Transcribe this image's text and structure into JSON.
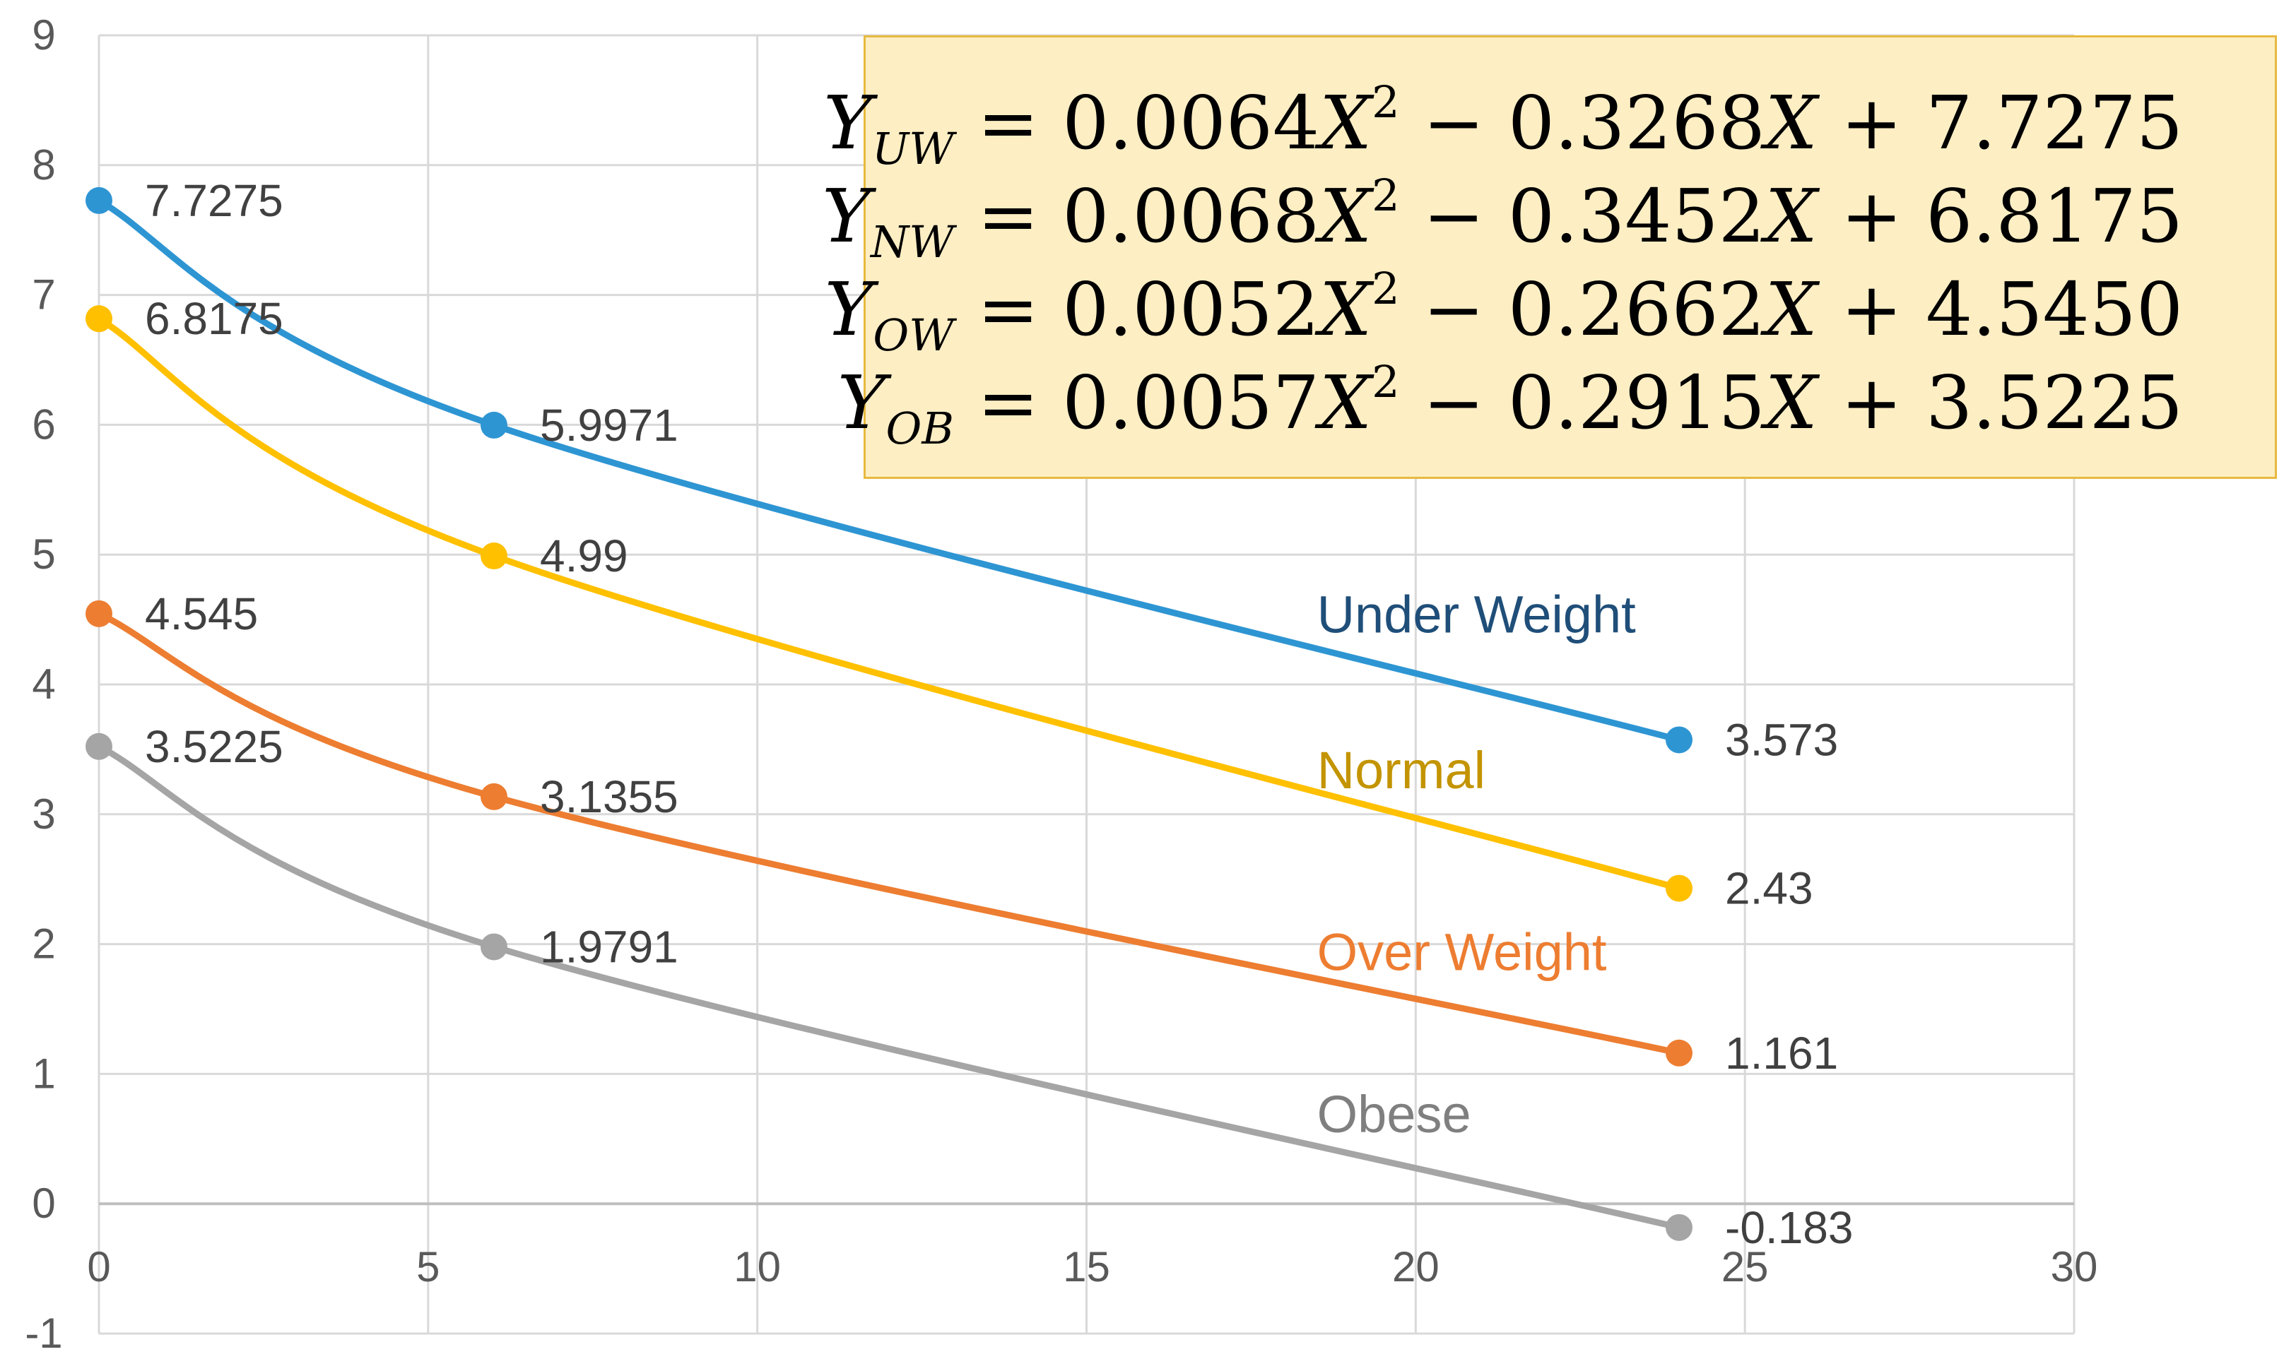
{
  "chart_data": {
    "type": "line",
    "x": [
      0,
      6,
      24
    ],
    "xlim": [
      0,
      30
    ],
    "ylim": [
      -1,
      9
    ],
    "xticks": [
      "0",
      "5",
      "10",
      "15",
      "20",
      "25",
      "30"
    ],
    "yticks": [
      "9",
      "8",
      "7",
      "6",
      "5",
      "4",
      "3",
      "2",
      "1",
      "0",
      "-1"
    ],
    "grid": true,
    "series": [
      {
        "name": "Under Weight",
        "color": "#2e95d3",
        "label_color": "#1f4e79",
        "values": [
          7.7275,
          5.9971,
          3.573
        ],
        "labels": [
          "7.7275",
          "5.9971",
          "3.573"
        ]
      },
      {
        "name": "Normal",
        "color": "#ffc000",
        "label_color": "#c39400",
        "values": [
          6.8175,
          4.99,
          2.43
        ],
        "labels": [
          "6.8175",
          "4.99",
          "2.43"
        ]
      },
      {
        "name": "Over Weight",
        "color": "#ed7d31",
        "label_color": "#ed7d31",
        "values": [
          4.545,
          3.1355,
          1.161
        ],
        "labels": [
          "4.545",
          "3.1355",
          "1.161"
        ]
      },
      {
        "name": "Obese",
        "color": "#a5a5a5",
        "label_color": "#7f7f7f",
        "values": [
          3.5225,
          1.9791,
          -0.183
        ],
        "labels": [
          "3.5225",
          "1.9791",
          "-0.183"
        ]
      }
    ]
  },
  "equations": [
    {
      "sub": "UW",
      "a": "0.0064",
      "b": "0.3268",
      "c": "7.7275"
    },
    {
      "sub": "NW",
      "a": "0.0068",
      "b": "0.3452",
      "c": "6.8175"
    },
    {
      "sub": "OW",
      "a": "0.0052",
      "b": "0.2662",
      "c": "4.5450"
    },
    {
      "sub": "OB",
      "a": "0.0057",
      "b": "0.2915",
      "c": "3.5225"
    }
  ],
  "equation_symbols": {
    "y": "Y",
    "x": "X",
    "eq": "=",
    "minus": "−",
    "plus": "+",
    "power": "2"
  }
}
